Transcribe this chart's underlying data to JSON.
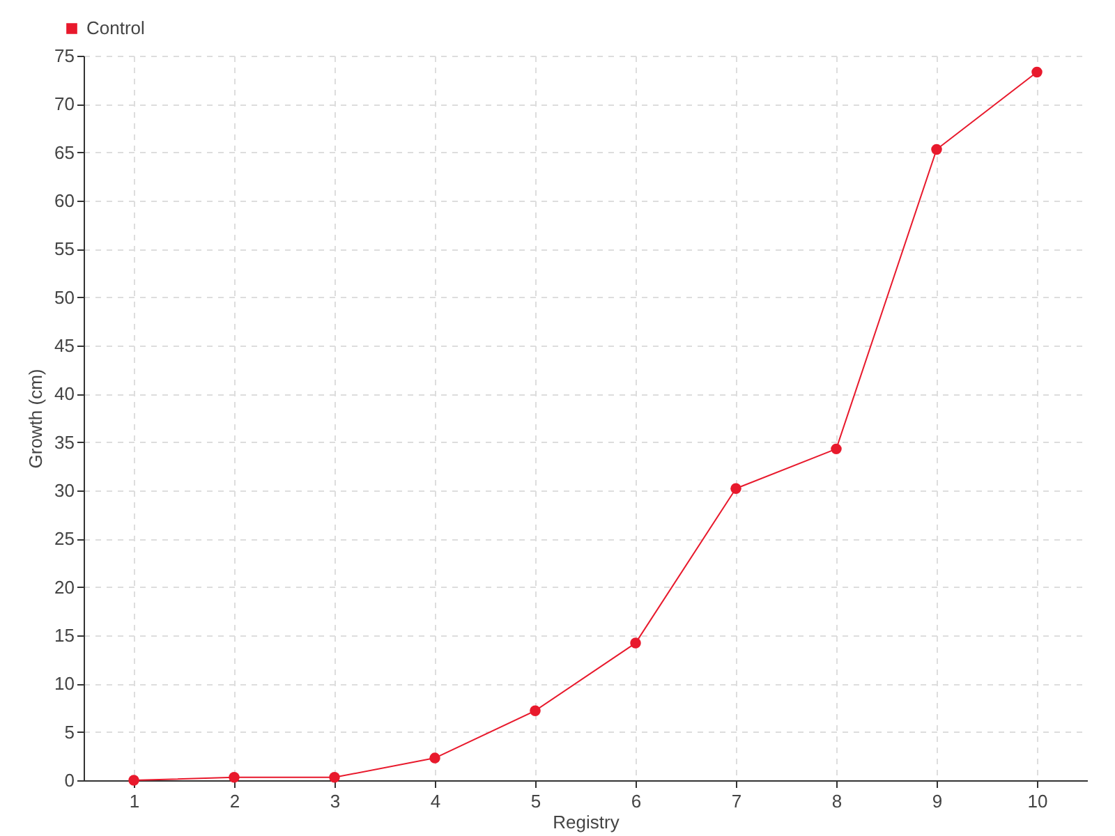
{
  "chart_data": {
    "type": "line",
    "xlabel": "Registry",
    "ylabel": "Growth (cm)",
    "categories": [
      "1",
      "2",
      "3",
      "4",
      "5",
      "6",
      "7",
      "8",
      "9",
      "10"
    ],
    "series": [
      {
        "name": "Control",
        "color": "#e8192c",
        "values": [
          0,
          0.3,
          0.3,
          2.3,
          7.2,
          14.2,
          30.2,
          34.3,
          65.3,
          73.3
        ]
      }
    ],
    "ylim": [
      0,
      75
    ],
    "yticks": [
      0,
      5,
      10,
      15,
      20,
      25,
      30,
      35,
      40,
      45,
      50,
      55,
      60,
      65,
      70,
      75
    ],
    "grid": true,
    "legend": "top left",
    "marker": "circle",
    "line_style": "solid"
  }
}
